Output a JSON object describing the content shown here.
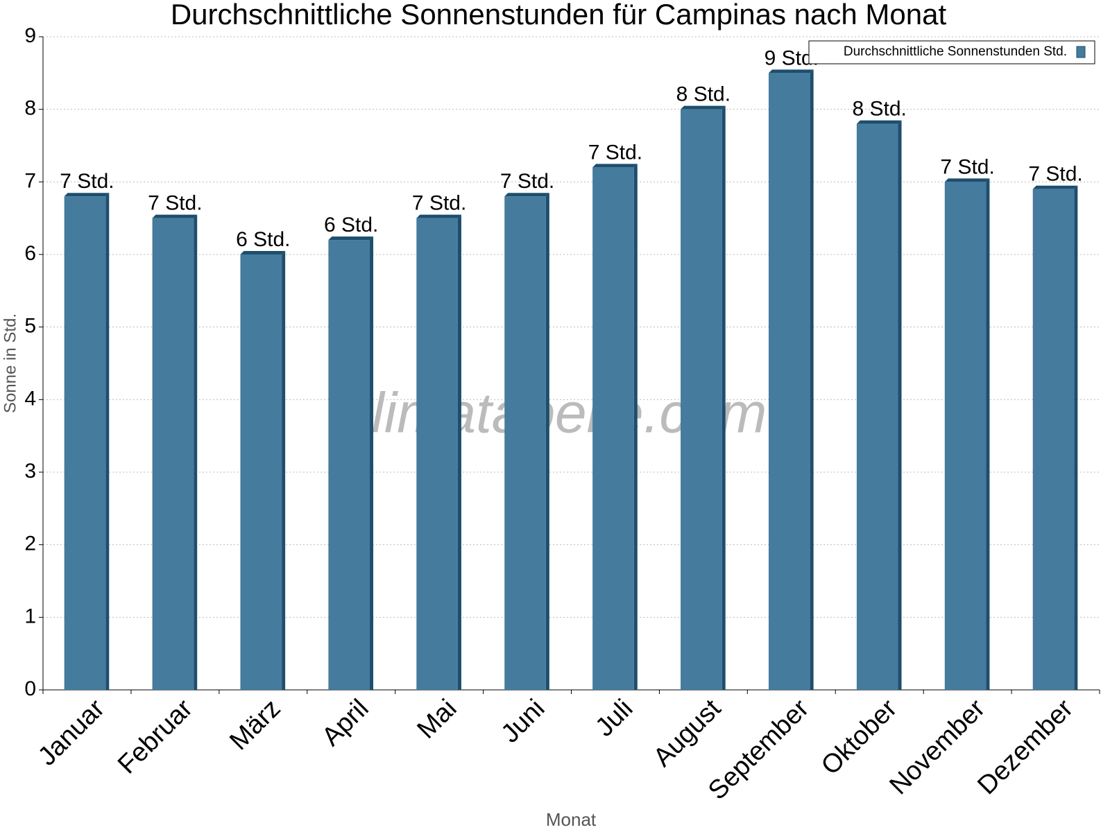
{
  "chart_data": {
    "type": "bar",
    "title": "Durchschnittliche Sonnenstunden für Campinas nach Monat",
    "x_label": "Monat",
    "y_label": "Sonne in Std.",
    "watermark": "klimatabelle.com",
    "categories": [
      "Januar",
      "Februar",
      "März",
      "April",
      "Mai",
      "Juni",
      "Juli",
      "August",
      "September",
      "Oktober",
      "November",
      "Dezember"
    ],
    "series": [
      {
        "name": "Durchschnittliche Sonnenstunden Std.",
        "color": "#457b9d",
        "values": [
          6.8,
          6.5,
          6.0,
          6.2,
          6.5,
          6.8,
          7.2,
          8.0,
          8.5,
          7.8,
          7.0,
          6.9
        ],
        "value_labels": [
          "7 Std.",
          "7 Std.",
          "6 Std.",
          "6 Std.",
          "7 Std.",
          "7 Std.",
          "7 Std.",
          "8 Std.",
          "9 Std.",
          "8 Std.",
          "7 Std.",
          "7 Std."
        ]
      }
    ],
    "ylim": [
      0,
      9
    ],
    "yticks": [
      0,
      1,
      2,
      3,
      4,
      5,
      6,
      7,
      8,
      9
    ],
    "grid": true,
    "legend": "top-right"
  }
}
